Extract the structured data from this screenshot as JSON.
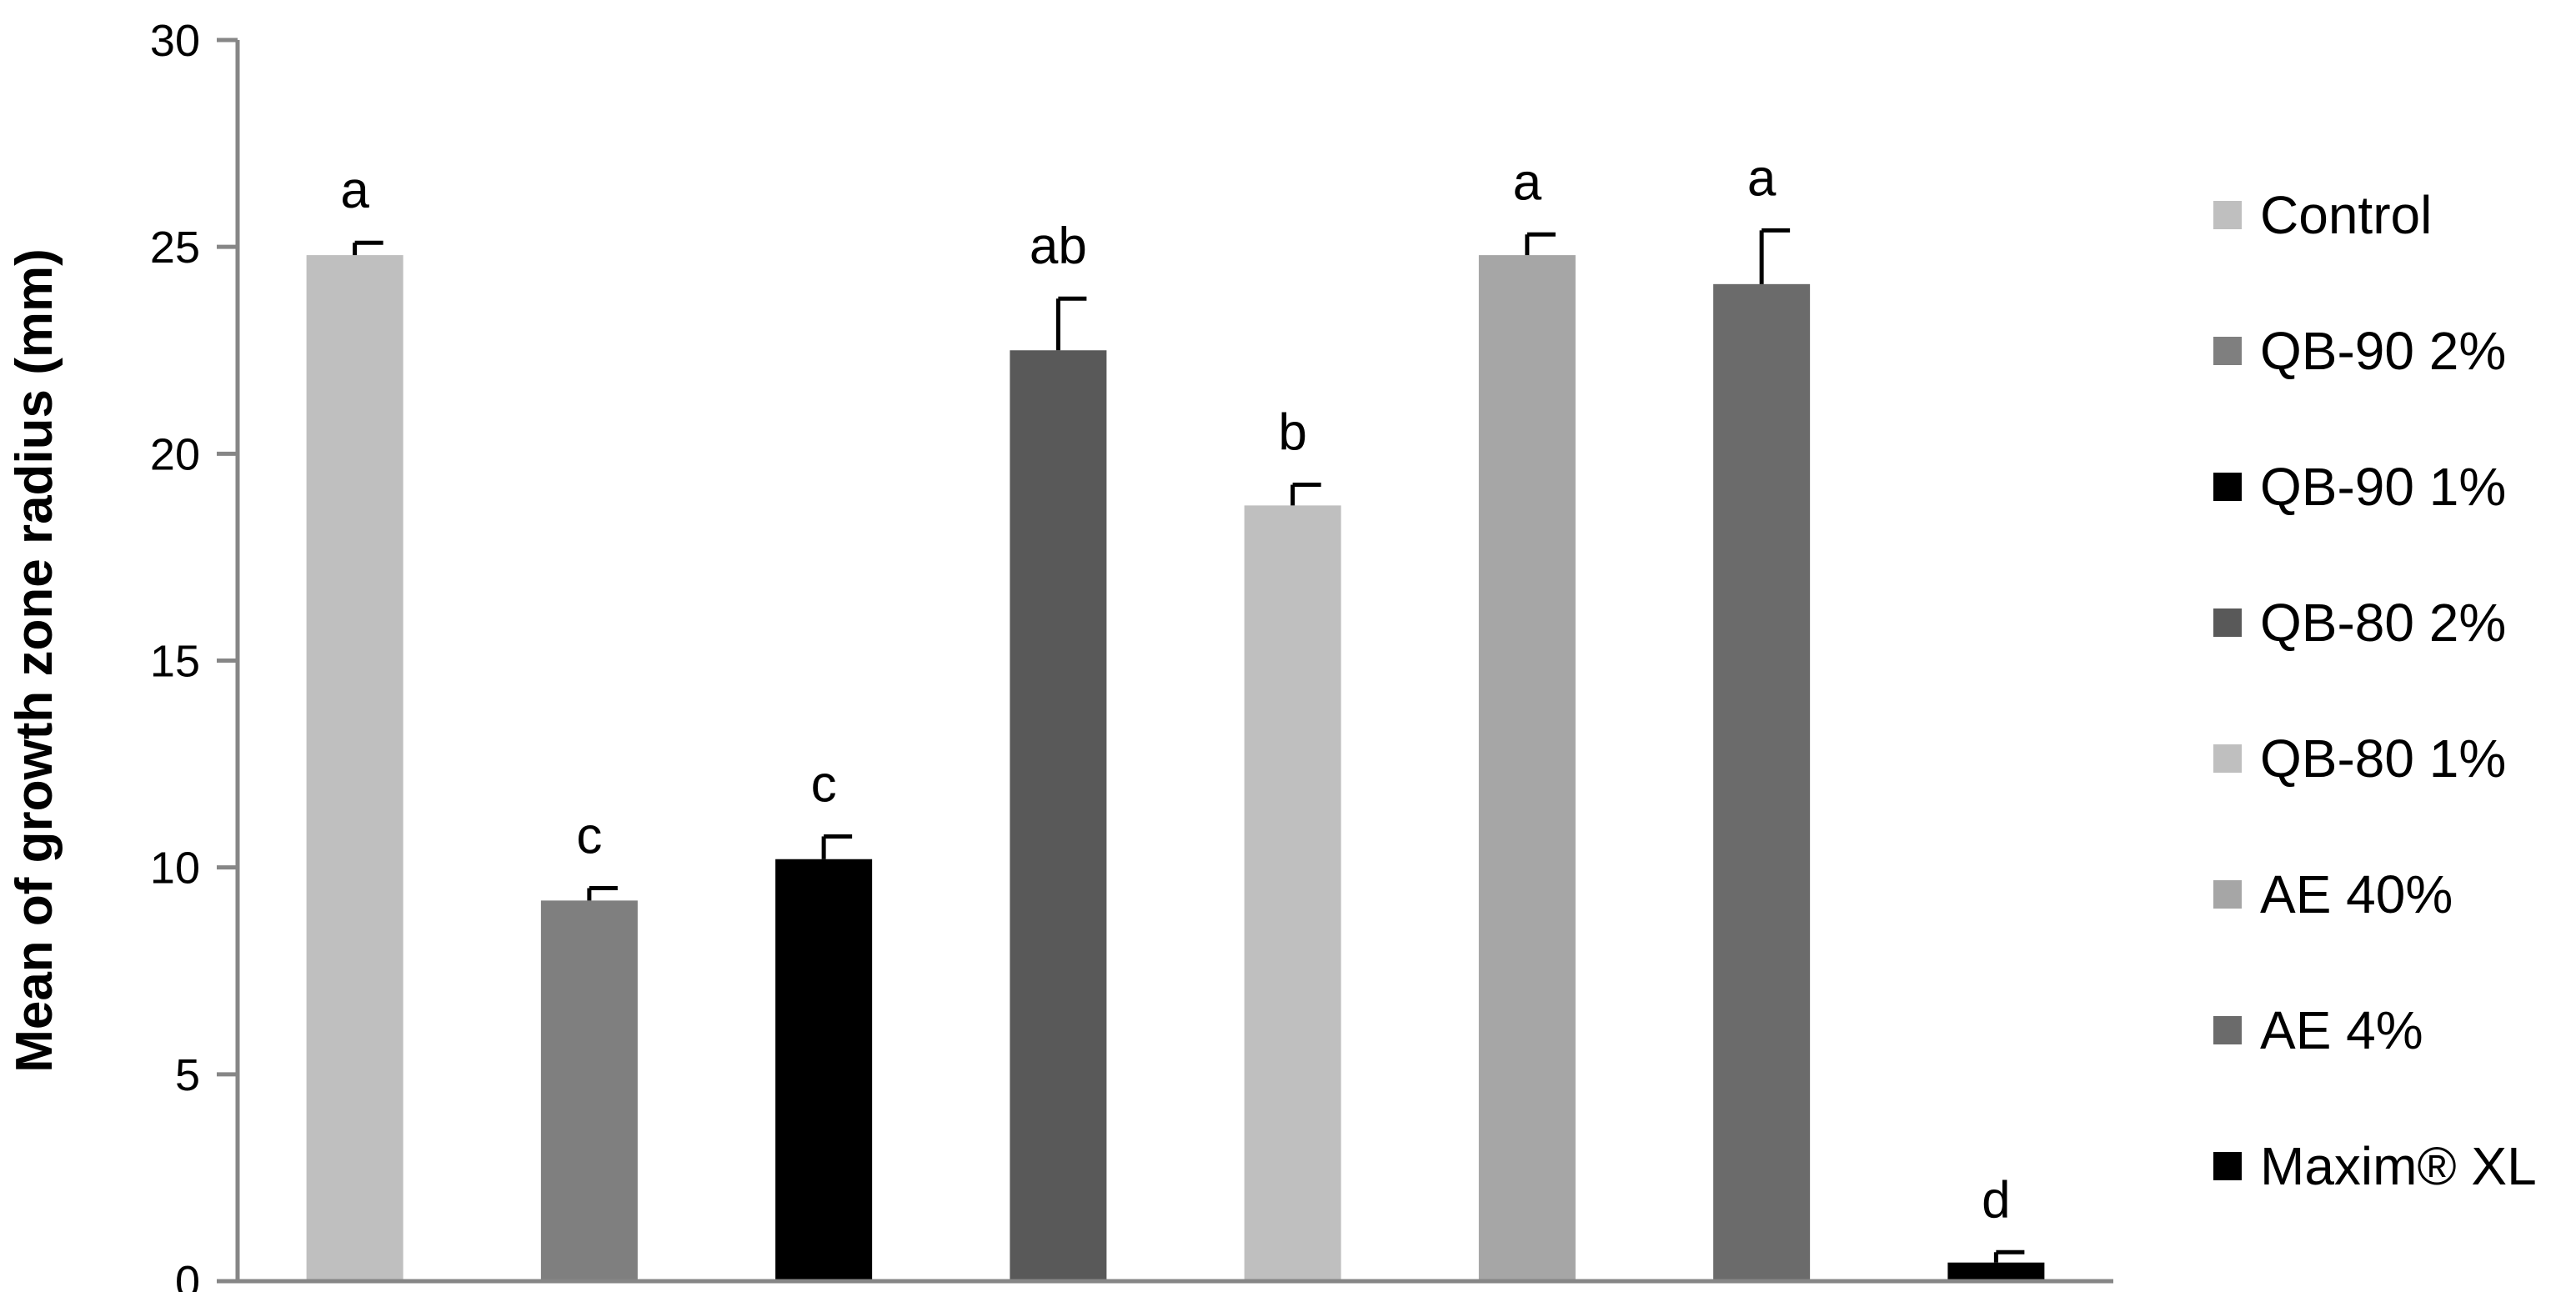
{
  "chart_data": {
    "type": "bar",
    "title": "",
    "xlabel": "",
    "ylabel": "Mean of growth zone radius (mm)",
    "ylim": [
      0,
      30
    ],
    "yticks": [
      0,
      5,
      10,
      15,
      20,
      25,
      30
    ],
    "grid": false,
    "legend_position": "right",
    "series": [
      {
        "name": "Control",
        "value": 24.8,
        "error": 0.3,
        "label": "a",
        "color": "#bfbfbf"
      },
      {
        "name": "QB-90 2%",
        "value": 9.2,
        "error": 0.3,
        "label": "c",
        "color": "#7f7f7f"
      },
      {
        "name": "QB-90 1%",
        "value": 10.2,
        "error": 0.55,
        "label": "c",
        "color": "#000000"
      },
      {
        "name": "QB-80 2%",
        "value": 22.5,
        "error": 1.25,
        "label": "ab",
        "color": "#595959"
      },
      {
        "name": "QB-80 1%",
        "value": 18.75,
        "error": 0.5,
        "label": "b",
        "color": "#bfbfbf"
      },
      {
        "name": "AE 40%",
        "value": 24.8,
        "error": 0.5,
        "label": "a",
        "color": "#a6a6a6"
      },
      {
        "name": "AE 4%",
        "value": 24.1,
        "error": 1.3,
        "label": "a",
        "color": "#6b6b6b"
      },
      {
        "name": "Maxim® XL",
        "value": 0.45,
        "error": 0.25,
        "label": "d",
        "color": "#000000"
      }
    ]
  }
}
